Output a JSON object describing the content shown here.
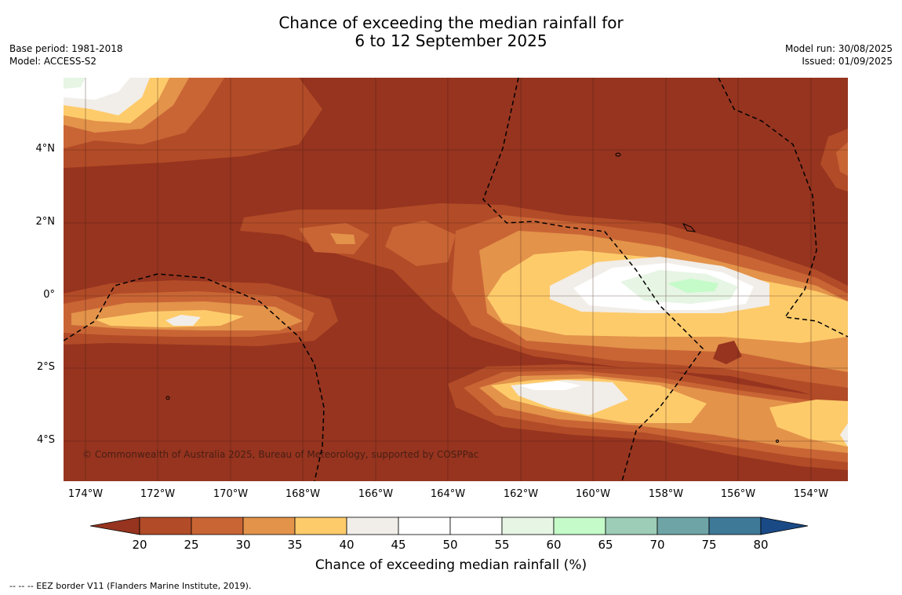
{
  "title": {
    "line1": "Chance of exceeding the median rainfall for",
    "line2": "6 to 12 September 2025"
  },
  "meta_left": {
    "base_period": "Base period: 1981-2018",
    "model": "Model: ACCESS-S2"
  },
  "meta_right": {
    "model_run": "Model run: 30/08/2025",
    "issued": "Issued: 01/09/2025"
  },
  "map": {
    "lat_labels": [
      "4°N",
      "2°N",
      "0°",
      "2°S",
      "4°S"
    ],
    "lon_labels": [
      "174°W",
      "172°W",
      "170°W",
      "168°W",
      "166°W",
      "164°W",
      "162°W",
      "160°W",
      "158°W",
      "156°W",
      "154°W"
    ],
    "copyright": "© Commonwealth of Australia 2025, Bureau of Meteorology, supported by COSPPac"
  },
  "colorbar": {
    "ticks": [
      "20",
      "25",
      "30",
      "35",
      "40",
      "45",
      "50",
      "55",
      "60",
      "65",
      "70",
      "75",
      "80"
    ],
    "colors": [
      "#96341f",
      "#b24b27",
      "#c96535",
      "#e3934a",
      "#fecb6b",
      "#f1ede8",
      "#ffffff",
      "#ffffff",
      "#e6f5e4",
      "#c4fbc8",
      "#9dcdb6",
      "#6fa4a6",
      "#3f7998",
      "#1a4a86"
    ],
    "label": "Chance of exceeding median rainfall (%)"
  },
  "footnote": "--  --  -- EEZ border V11 (Flanders Marine Institute, 2019)."
}
